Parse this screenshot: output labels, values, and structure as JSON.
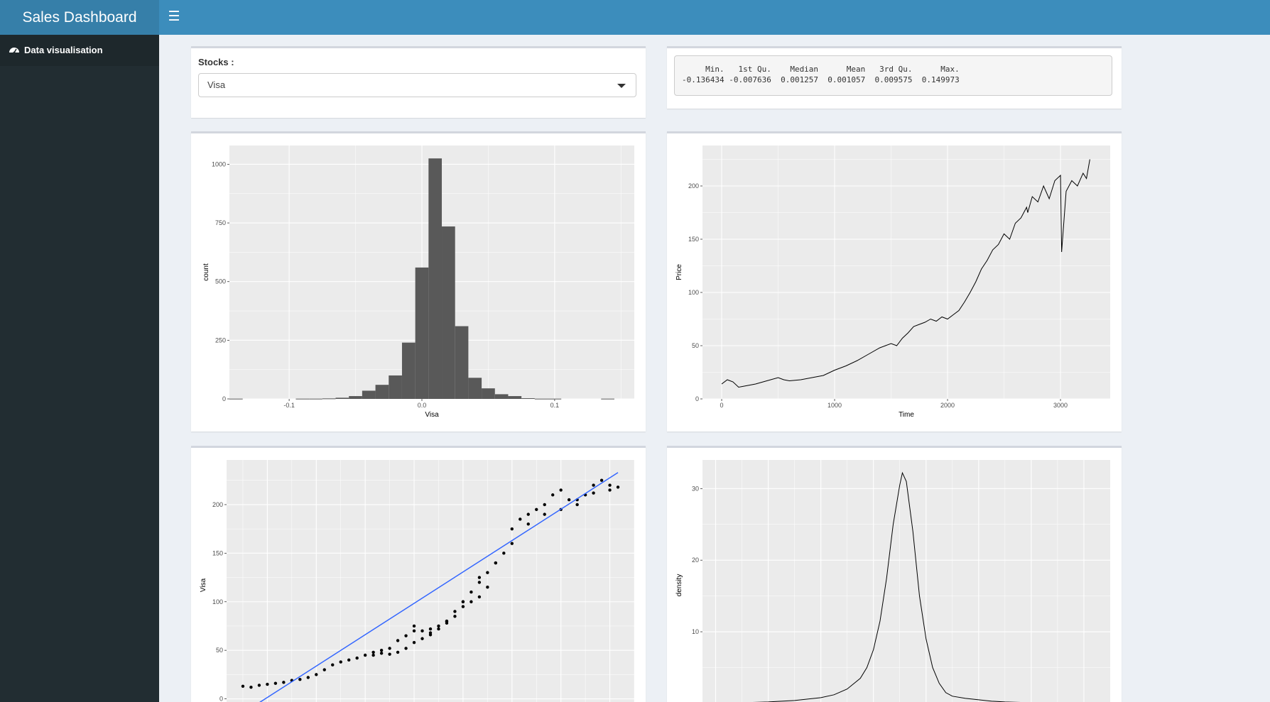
{
  "header": {
    "title": "Sales Dashboard",
    "toggle_icon": "hamburger-menu-icon"
  },
  "sidebar": {
    "items": [
      {
        "label": "Data visualisation",
        "icon": "dashboard-icon"
      }
    ]
  },
  "controls": {
    "label": "Stocks :",
    "selected": "Visa"
  },
  "summary": {
    "headers": [
      "Min.",
      "1st Qu.",
      "Median",
      "Mean",
      "3rd Qu.",
      "Max."
    ],
    "values": [
      "-0.136434",
      "-0.007636",
      "0.001257",
      "0.001057",
      "0.009575",
      "0.149973"
    ]
  },
  "colors": {
    "header": "#3c8dbc",
    "logo": "#367fa9",
    "sidebar": "#222d32",
    "panel": "#ebebeb",
    "bars": "#595959",
    "regression": "#3366ff"
  },
  "chart_data": [
    {
      "type": "bar",
      "xlabel": "Visa",
      "ylabel": "count",
      "xticks": [
        -0.1,
        0.0,
        0.1
      ],
      "yticks": [
        0,
        250,
        500,
        750,
        1000
      ],
      "xlim": [
        -0.145,
        0.16
      ],
      "ylim": [
        0,
        1080
      ],
      "bin_width": 0.01,
      "bins": [
        -0.14,
        -0.13,
        -0.12,
        -0.11,
        -0.1,
        -0.09,
        -0.08,
        -0.07,
        -0.06,
        -0.05,
        -0.04,
        -0.03,
        -0.02,
        -0.01,
        0.0,
        0.01,
        0.02,
        0.03,
        0.04,
        0.05,
        0.06,
        0.07,
        0.08,
        0.09,
        0.1,
        0.11,
        0.12,
        0.13,
        0.14,
        0.15
      ],
      "counts": [
        1,
        0,
        0,
        0,
        0,
        1,
        1,
        2,
        5,
        12,
        35,
        60,
        100,
        240,
        560,
        1025,
        735,
        310,
        90,
        45,
        20,
        12,
        3,
        1,
        1,
        0,
        0,
        0,
        1,
        0
      ]
    },
    {
      "type": "line",
      "xlabel": "Time",
      "ylabel": "Price",
      "xticks": [
        0,
        1000,
        2000,
        3000
      ],
      "yticks": [
        0,
        50,
        100,
        150,
        200
      ],
      "xlim": [
        -170,
        3440
      ],
      "ylim": [
        0,
        238
      ],
      "x": [
        0,
        50,
        100,
        150,
        200,
        300,
        400,
        500,
        550,
        600,
        700,
        800,
        900,
        1000,
        1100,
        1200,
        1300,
        1400,
        1500,
        1550,
        1600,
        1650,
        1700,
        1750,
        1800,
        1850,
        1900,
        1950,
        2000,
        2050,
        2100,
        2150,
        2200,
        2250,
        2300,
        2350,
        2400,
        2450,
        2500,
        2550,
        2600,
        2650,
        2700,
        2710,
        2750,
        2800,
        2850,
        2900,
        2950,
        3000,
        3010,
        3050,
        3100,
        3150,
        3200,
        3230,
        3260
      ],
      "y": [
        14,
        18,
        16,
        11,
        12,
        14,
        17,
        20,
        18,
        17,
        18,
        20,
        22,
        27,
        31,
        36,
        42,
        48,
        52,
        50,
        57,
        62,
        68,
        70,
        72,
        75,
        73,
        77,
        75,
        79,
        83,
        91,
        100,
        110,
        122,
        130,
        140,
        145,
        155,
        150,
        165,
        170,
        180,
        175,
        190,
        185,
        200,
        188,
        205,
        210,
        138,
        195,
        205,
        200,
        212,
        207,
        225
      ]
    },
    {
      "type": "scatter",
      "xlabel": "",
      "ylabel": "Visa",
      "yticks": [
        0,
        50,
        100,
        150,
        200
      ],
      "xlim": [
        0,
        100
      ],
      "ylim": [
        -12,
        246
      ],
      "x": [
        4,
        6,
        8,
        10,
        12,
        14,
        16,
        18,
        20,
        22,
        24,
        26,
        28,
        30,
        32,
        34,
        36,
        38,
        40,
        42,
        44,
        46,
        48,
        50,
        52,
        54,
        56,
        58,
        60,
        62,
        64,
        66,
        68,
        70,
        72,
        74,
        76,
        78,
        80,
        82,
        84,
        86,
        88,
        90,
        92,
        94,
        36,
        38,
        40,
        42,
        44,
        46,
        48,
        50,
        52,
        54,
        56,
        58,
        60,
        62,
        64,
        46,
        50,
        54,
        58,
        62,
        66,
        70,
        74,
        78,
        82,
        86,
        90,
        94,
        96
      ],
      "y": [
        13,
        12,
        14,
        15,
        16,
        17,
        19,
        20,
        22,
        25,
        30,
        35,
        38,
        40,
        42,
        45,
        48,
        50,
        52,
        60,
        65,
        70,
        70,
        68,
        75,
        80,
        90,
        100,
        110,
        120,
        130,
        140,
        150,
        175,
        185,
        190,
        195,
        200,
        210,
        215,
        205,
        200,
        210,
        220,
        225,
        220,
        45,
        47,
        46,
        48,
        52,
        58,
        62,
        66,
        72,
        78,
        85,
        95,
        100,
        105,
        115,
        75,
        72,
        80,
        100,
        125,
        140,
        160,
        180,
        190,
        195,
        205,
        212,
        215,
        218
      ],
      "regression": {
        "x": [
          5,
          96
        ],
        "y": [
          -12,
          233
        ]
      }
    },
    {
      "type": "line",
      "xlabel": "",
      "ylabel": "density",
      "yticks": [
        10,
        20,
        30
      ],
      "xlim": [
        -0.15,
        0.16
      ],
      "ylim": [
        -1,
        34
      ],
      "x": [
        -0.12,
        -0.1,
        -0.08,
        -0.06,
        -0.05,
        -0.04,
        -0.03,
        -0.025,
        -0.02,
        -0.015,
        -0.01,
        -0.005,
        0.0,
        0.002,
        0.005,
        0.01,
        0.015,
        0.02,
        0.025,
        0.03,
        0.035,
        0.04,
        0.05,
        0.06,
        0.07,
        0.08,
        0.1,
        0.12
      ],
      "y": [
        0.1,
        0.2,
        0.4,
        0.8,
        1.2,
        2.0,
        3.5,
        5.0,
        7.5,
        11.5,
        17.5,
        25.0,
        30.5,
        32.2,
        31.0,
        24.0,
        15.0,
        9.0,
        5.0,
        2.8,
        1.5,
        1.0,
        0.7,
        0.5,
        0.3,
        0.2,
        0.1,
        0.05
      ]
    }
  ]
}
